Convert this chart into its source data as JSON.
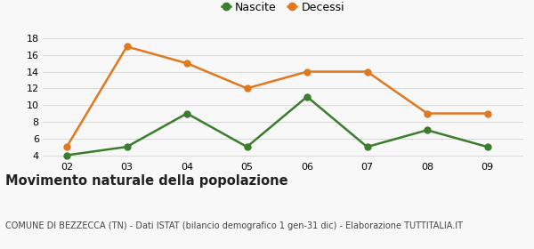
{
  "x": [
    2,
    3,
    4,
    5,
    6,
    7,
    8,
    9
  ],
  "x_labels": [
    "02",
    "03",
    "04",
    "05",
    "06",
    "07",
    "08",
    "09"
  ],
  "nascite": [
    4,
    5,
    9,
    5,
    11,
    5,
    7,
    5
  ],
  "decessi": [
    5,
    17,
    15,
    12,
    14,
    14,
    9,
    9
  ],
  "nascite_color": "#3a7d2c",
  "decessi_color": "#e07820",
  "ylim": [
    3.5,
    19
  ],
  "yticks": [
    4,
    6,
    8,
    10,
    12,
    14,
    16,
    18
  ],
  "legend_nascite": "Nascite",
  "legend_decessi": "Decessi",
  "title": "Movimento naturale della popolazione",
  "subtitle": "COMUNE DI BEZZECCA (TN) - Dati ISTAT (bilancio demografico 1 gen-31 dic) - Elaborazione TUTTITALIA.IT",
  "background_color": "#f8f8f8",
  "grid_color": "#d8d8d8",
  "marker_size": 5,
  "line_width": 1.8,
  "title_fontsize": 10.5,
  "subtitle_fontsize": 7,
  "tick_fontsize": 8,
  "legend_fontsize": 9
}
